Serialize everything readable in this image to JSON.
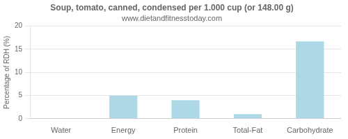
{
  "chart_data": {
    "type": "bar",
    "title": "Soup, tomato, canned, condensed per 1.000 cup (or 148.00 g)",
    "subtitle": "www.dietandfitnesstoday.com",
    "categories": [
      "Water",
      "Energy",
      "Protein",
      "Total-Fat",
      "Carbohydrate"
    ],
    "values": [
      0,
      5.0,
      4.0,
      1.0,
      16.7
    ],
    "color": "#add8e6",
    "ylabel": "Percentage of RDH (%)",
    "ylim": [
      0,
      20
    ],
    "yticks": [
      0,
      5,
      10,
      15,
      20
    ],
    "grid": true
  }
}
